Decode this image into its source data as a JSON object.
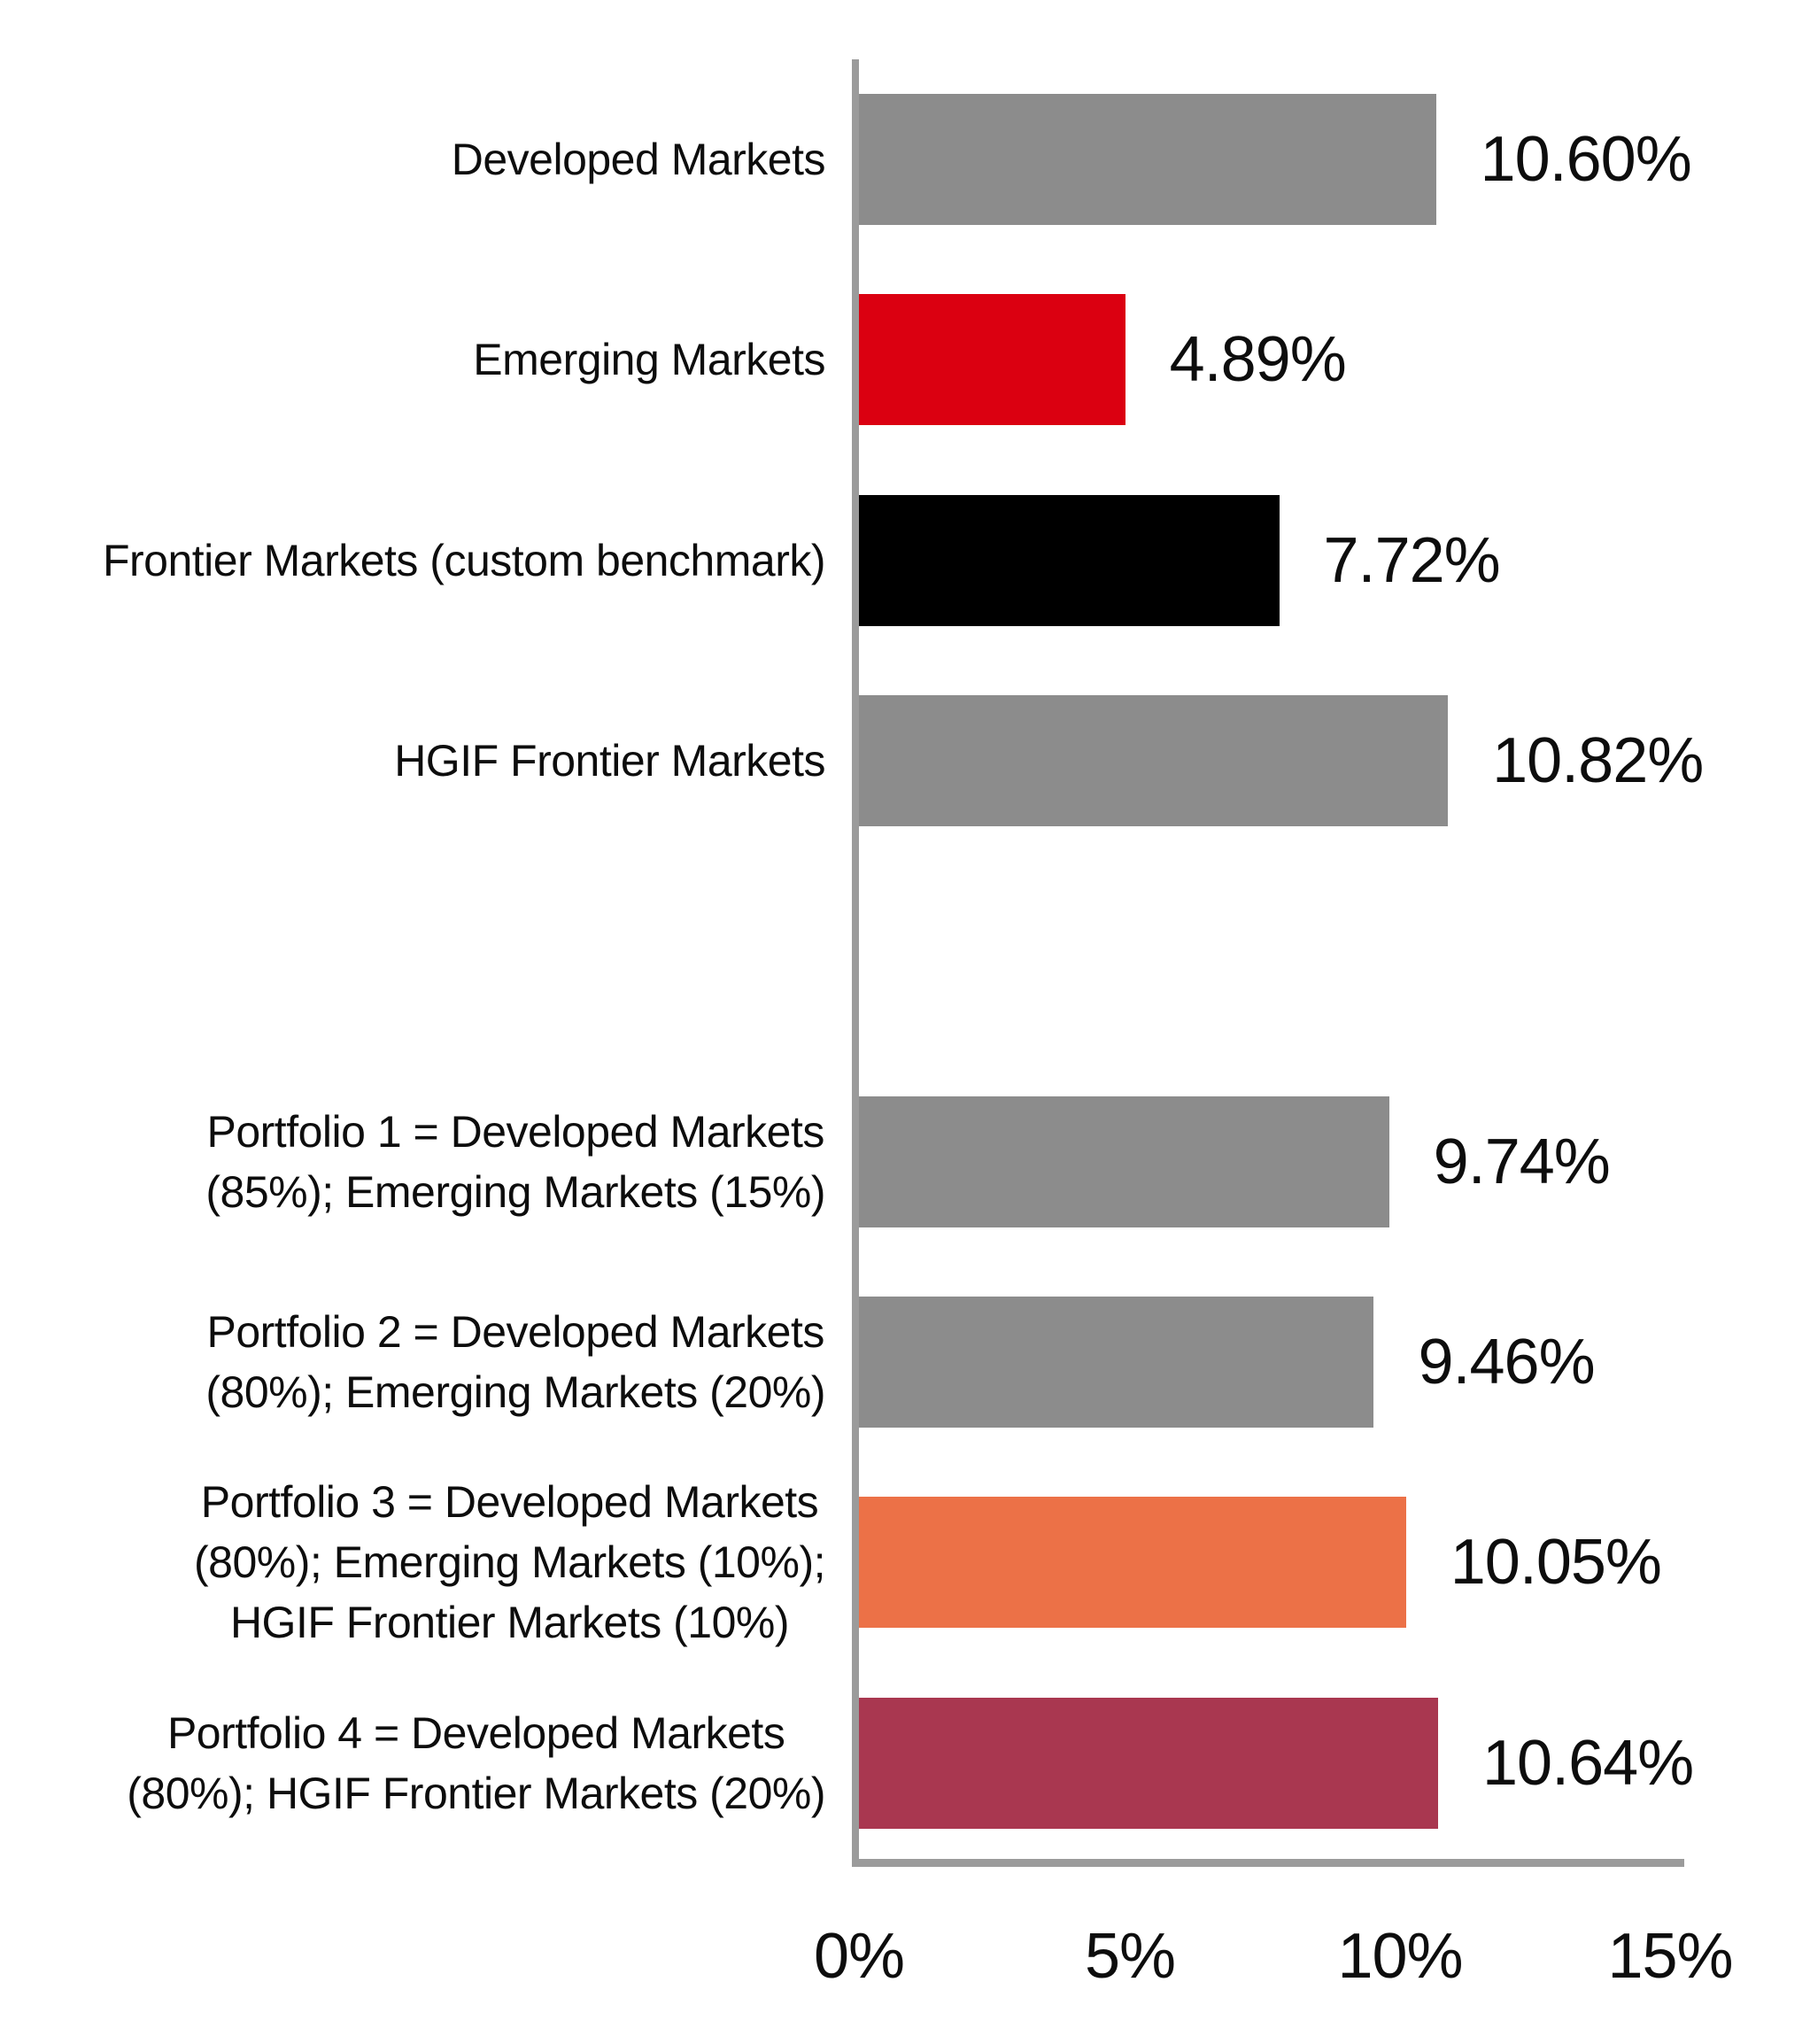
{
  "chart_data": {
    "type": "bar",
    "orientation": "horizontal",
    "title": "",
    "xlabel": "",
    "ylabel": "",
    "legend": "none",
    "grid": false,
    "axis": {
      "max": 15,
      "tick_values": [
        0,
        5,
        10,
        15
      ],
      "ticks": [
        "0%",
        "5%",
        "10%",
        "15%"
      ]
    },
    "colors": {
      "gray": "#8C8C8C",
      "red": "#DB0011",
      "black": "#000000",
      "orange": "#EC7147",
      "maroon": "#A93750",
      "axis": "#9B9B9B"
    },
    "rows": [
      {
        "label": "Developed Markets",
        "value": 10.6,
        "display": "10.60%",
        "color": "#8C8C8C"
      },
      {
        "label": "Emerging Markets",
        "value": 4.89,
        "display": "4.89%",
        "color": "#DB0011"
      },
      {
        "label": "Frontier Markets (custom benchmark)",
        "value": 7.72,
        "display": "7.72%",
        "color": "#000000"
      },
      {
        "label": "HGIF Frontier Markets",
        "value": 10.82,
        "display": "10.82%",
        "color": "#8C8C8C"
      },
      {
        "label": "",
        "value": null,
        "display": "",
        "color": null
      },
      {
        "label": "Portfolio 1 = Developed Markets\n(85%); Emerging Markets (15%)",
        "value": 9.74,
        "display": "9.74%",
        "color": "#8C8C8C"
      },
      {
        "label": "Portfolio 2 = Developed Markets\n(80%); Emerging Markets (20%)",
        "value": 9.46,
        "display": "9.46%",
        "color": "#8C8C8C"
      },
      {
        "label": "Portfolio 3 = Developed Markets\n(80%); Emerging Markets (10%);\nHGIF Frontier Markets (10%)",
        "value": 10.05,
        "display": "10.05%",
        "color": "#EC7147"
      },
      {
        "label": "Portfolio 4 = Developed Markets\n(80%); HGIF Frontier Markets (20%)",
        "value": 10.64,
        "display": "10.64%",
        "color": "#A93750"
      }
    ]
  }
}
